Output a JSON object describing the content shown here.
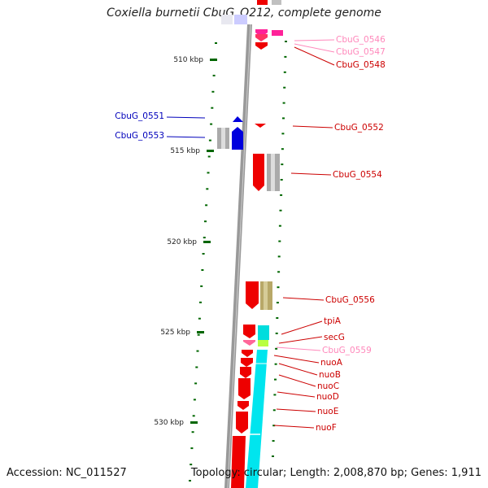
{
  "title": "Coxiella burnetii CbuG_Q212, complete genome",
  "footer": {
    "accession": "Accession: NC_011527",
    "summary": "Topology: circular; Length: 2,008,870 bp; Genes: 1,911"
  },
  "colors": {
    "strand_plus": "#0000dd",
    "strand_minus": "#dd0000",
    "pseudo": "#ff88bb",
    "rna_pink": "#ff2299",
    "grey_feature": "#aaaaaa",
    "olive_feature": "#b8a868",
    "cyan_feature": "#00e5ee",
    "lime_feature": "#b8ff40",
    "tick_color": "#006600",
    "backbone": "#999999"
  },
  "scale": {
    "ticks": [
      "510 kbp",
      "515 kbp",
      "520 kbp",
      "525 kbp",
      "530 kbp"
    ]
  },
  "gene_labels_left": [
    {
      "name": "CbuG_0551",
      "color": "#0000bb"
    },
    {
      "name": "CbuG_0553",
      "color": "#0000bb"
    }
  ],
  "gene_labels_right": [
    {
      "name": "CbuG_0546",
      "color": "#ff88bb"
    },
    {
      "name": "CbuG_0547",
      "color": "#ff88bb"
    },
    {
      "name": "CbuG_0548",
      "color": "#cc0000"
    },
    {
      "name": "CbuG_0552",
      "color": "#cc0000"
    },
    {
      "name": "CbuG_0554",
      "color": "#cc0000"
    },
    {
      "name": "CbuG_0556",
      "color": "#cc0000"
    },
    {
      "name": "tpiA",
      "color": "#cc0000"
    },
    {
      "name": "secG",
      "color": "#cc0000"
    },
    {
      "name": "CbuG_0559",
      "color": "#ff88bb"
    },
    {
      "name": "nuoA",
      "color": "#cc0000"
    },
    {
      "name": "nuoB",
      "color": "#cc0000"
    },
    {
      "name": "nuoC",
      "color": "#cc0000"
    },
    {
      "name": "nuoD",
      "color": "#cc0000"
    },
    {
      "name": "nuoE",
      "color": "#cc0000"
    },
    {
      "name": "nuoF",
      "color": "#cc0000"
    }
  ]
}
